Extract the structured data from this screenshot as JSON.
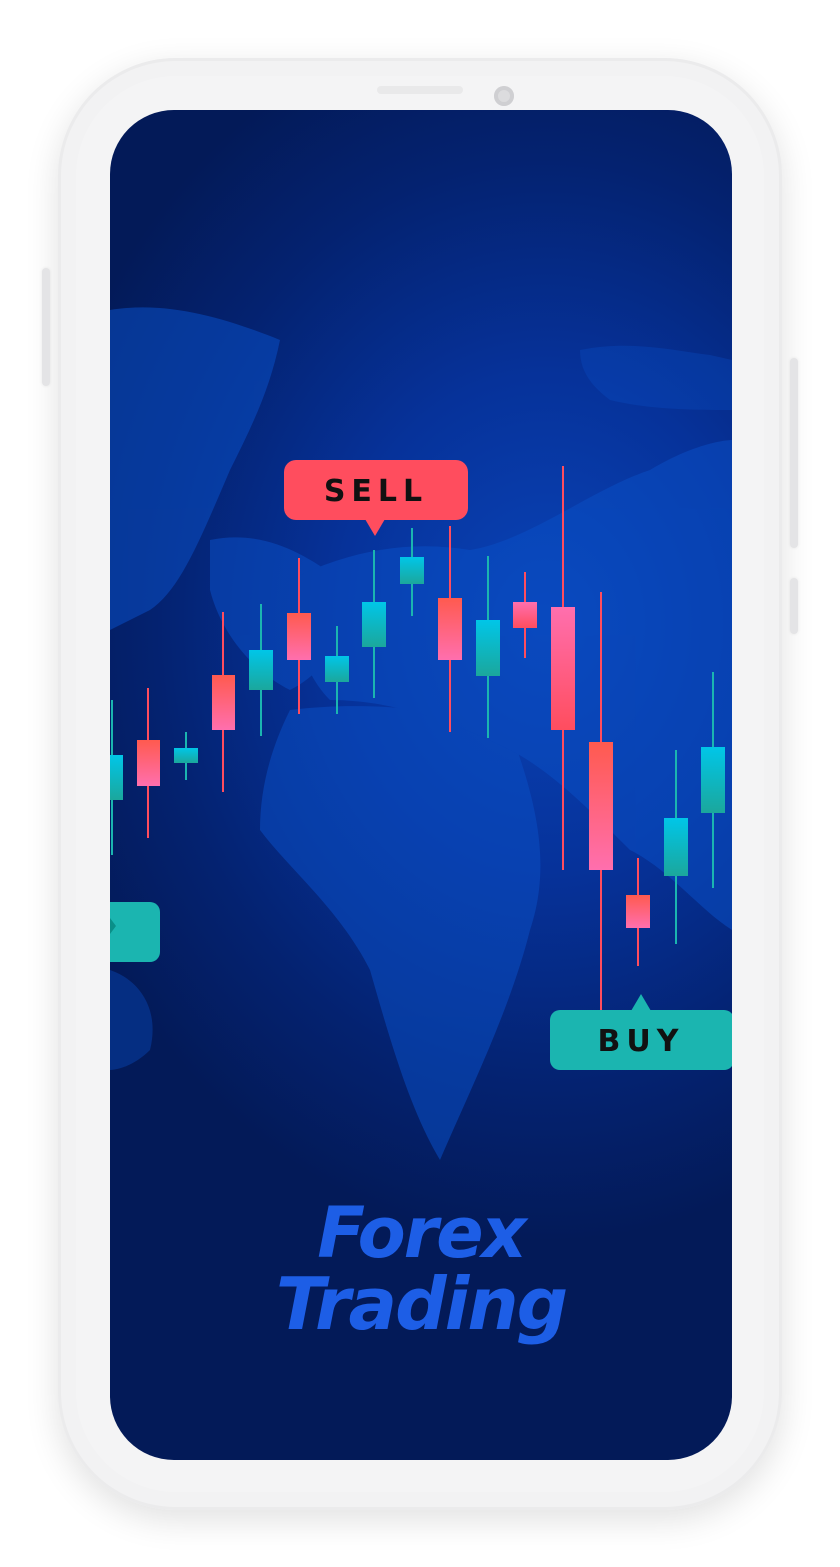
{
  "labels": {
    "sell": "SELL",
    "buy": "BUY"
  },
  "brand": {
    "line1": "Forex",
    "line2": "Trading"
  },
  "colors": {
    "bullish": "#1bb5b0",
    "bearish": "#ff4d5e",
    "accent": "#1d5ee6"
  },
  "icons": {
    "camera": "camera-icon",
    "speaker": "speaker-grille"
  }
}
